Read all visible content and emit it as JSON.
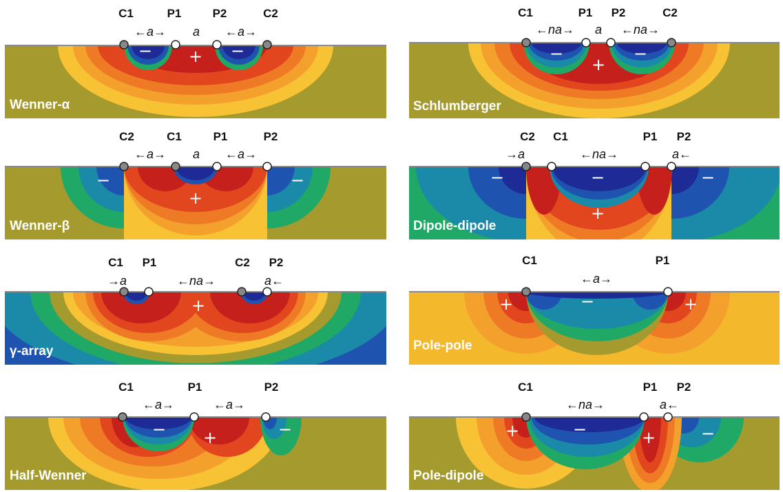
{
  "colors": {
    "background": "#a49a2e",
    "dipolar": "#1fa866",
    "pole": "#f4b82c",
    "contours": [
      "#f7c233",
      "#f4a02c",
      "#ee7a26",
      "#e2461f",
      "#c5201c",
      "#c5201c"
    ],
    "negative": [
      "#1e2b96",
      "#1e54b0",
      "#1a8aa8",
      "#1fa866"
    ],
    "electrode_dark": "#888888",
    "electrode_light": "#ffffff",
    "surface_line": "#8a8a8a"
  },
  "panels": [
    {
      "title": "Wenner-α",
      "background": "#a49a2e",
      "electrodes": [
        {
          "label": "C1",
          "type": "dark"
        },
        {
          "label": "P1",
          "type": "light"
        },
        {
          "label": "P2",
          "type": "light"
        },
        {
          "label": "C2",
          "type": "dark"
        }
      ],
      "spacings": [
        "←a→",
        "a",
        "←a→"
      ],
      "signs": [
        "−",
        "+",
        "−"
      ]
    },
    {
      "title": "Schlumberger",
      "background": "#a49a2e",
      "electrodes": [
        {
          "label": "C1",
          "type": "dark"
        },
        {
          "label": "P1",
          "type": "light"
        },
        {
          "label": "P2",
          "type": "light"
        },
        {
          "label": "C2",
          "type": "dark"
        }
      ],
      "spacings": [
        "←na→",
        "a",
        "←na→"
      ],
      "signs": [
        "−",
        "+",
        "−"
      ]
    },
    {
      "title": "Wenner-β",
      "background": "#a49a2e",
      "electrodes": [
        {
          "label": "C2",
          "type": "dark"
        },
        {
          "label": "C1",
          "type": "dark"
        },
        {
          "label": "P1",
          "type": "light"
        },
        {
          "label": "P2",
          "type": "light"
        }
      ],
      "spacings": [
        "←a→",
        "a",
        "←a→"
      ],
      "signs": [
        "−",
        "+",
        "−"
      ]
    },
    {
      "title": "Dipole-dipole",
      "background": "#1fa866",
      "electrodes": [
        {
          "label": "C2",
          "type": "dark"
        },
        {
          "label": "C1",
          "type": "light"
        },
        {
          "label": "P1",
          "type": "light"
        },
        {
          "label": "P2",
          "type": "light"
        }
      ],
      "spacings": [
        "→a",
        "←na→",
        "a←"
      ],
      "signs": [
        "−",
        "−",
        "+",
        "−"
      ]
    },
    {
      "title": "γ-array",
      "background": "#1e54b0",
      "electrodes": [
        {
          "label": "C1",
          "type": "dark"
        },
        {
          "label": "P1",
          "type": "light"
        },
        {
          "label": "C2",
          "type": "dark"
        },
        {
          "label": "P2",
          "type": "light"
        }
      ],
      "spacings": [
        "→a",
        "←na→",
        "a←"
      ],
      "signs": [
        "+"
      ]
    },
    {
      "title": "Pole-pole",
      "background": "#f4b82c",
      "electrodes": [
        {
          "label": "C1",
          "type": "dark"
        },
        {
          "label": "P1",
          "type": "light"
        }
      ],
      "spacings": [
        "←a→"
      ],
      "signs": [
        "+",
        "−",
        "+"
      ]
    },
    {
      "title": "Half-Wenner",
      "background": "#a49a2e",
      "electrodes": [
        {
          "label": "C1",
          "type": "dark"
        },
        {
          "label": "P1",
          "type": "light"
        },
        {
          "label": "P2",
          "type": "light"
        }
      ],
      "spacings": [
        "←a→",
        "←a→"
      ],
      "signs": [
        "−",
        "+",
        "−"
      ]
    },
    {
      "title": "Pole-dipole",
      "background": "#a49a2e",
      "electrodes": [
        {
          "label": "C1",
          "type": "dark"
        },
        {
          "label": "P1",
          "type": "light"
        },
        {
          "label": "P2",
          "type": "light"
        }
      ],
      "spacings": [
        "←na→",
        "a←"
      ],
      "signs": [
        "+",
        "−",
        "+",
        "−"
      ]
    }
  ]
}
